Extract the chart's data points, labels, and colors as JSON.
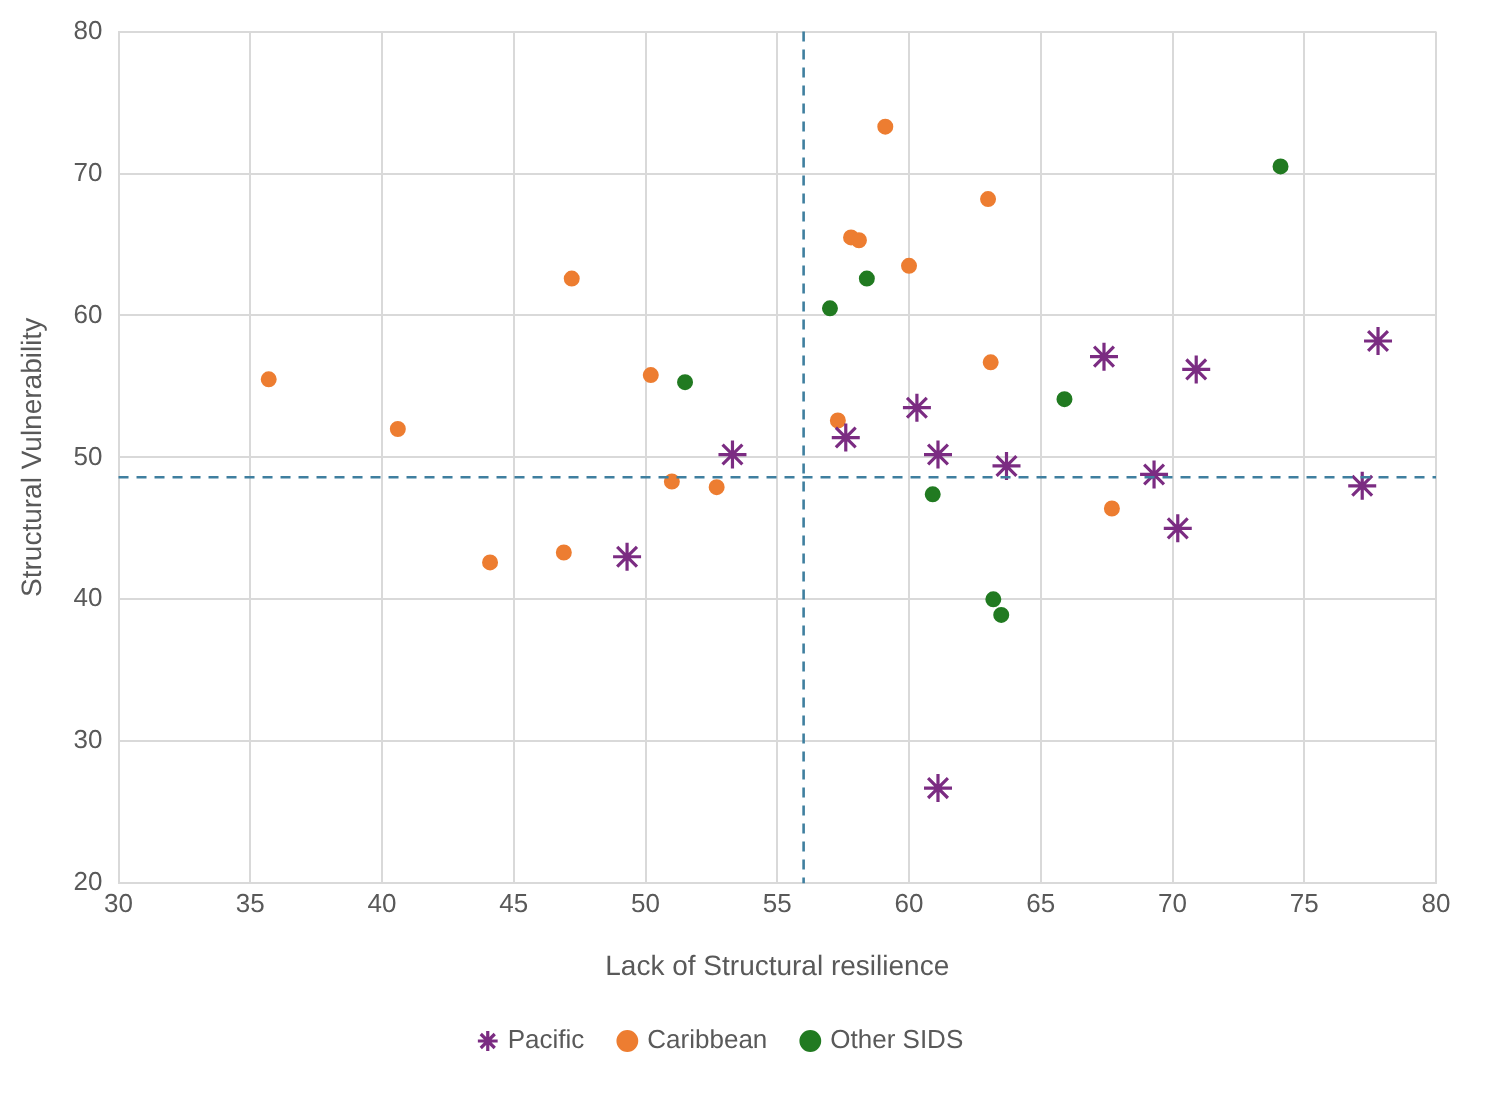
{
  "chart_data": {
    "type": "scatter",
    "xlabel": "Lack of Structural resilience",
    "ylabel": "Structural Vulnerability",
    "xlim": [
      30,
      80
    ],
    "xticks": [
      30,
      35,
      40,
      45,
      50,
      55,
      60,
      65,
      70,
      75,
      80
    ],
    "ylim": [
      20,
      80
    ],
    "yticks": [
      20,
      30,
      40,
      50,
      60,
      70,
      80
    ],
    "grid": true,
    "legend": "bottom",
    "series": [
      {
        "name": "Pacific",
        "color": "#7b2c82",
        "marker": "cross",
        "x": [
          49.3,
          53.3,
          57.6,
          60.3,
          61.1,
          63.7,
          67.4,
          69.3,
          70.2,
          70.9,
          77.2,
          77.8,
          61.1
        ],
        "values": [
          43.0,
          50.2,
          51.4,
          53.5,
          50.2,
          49.4,
          57.1,
          48.8,
          45.0,
          56.2,
          48.0,
          58.2,
          26.7
        ]
      },
      {
        "name": "Caribbean",
        "color": "#ed7d31",
        "marker": "circle",
        "x": [
          35.7,
          40.6,
          44.1,
          46.9,
          47.2,
          50.2,
          51.0,
          52.7,
          59.1,
          57.8,
          58.1,
          57.3,
          60.0,
          63.0,
          63.1,
          67.7
        ],
        "values": [
          55.5,
          52.0,
          42.6,
          43.3,
          62.6,
          55.8,
          48.3,
          47.9,
          73.3,
          65.5,
          65.3,
          52.6,
          63.5,
          68.2,
          56.7,
          46.4
        ]
      },
      {
        "name": "Other SIDS",
        "color": "#217a21",
        "marker": "circle",
        "x": [
          51.5,
          57.0,
          58.4,
          60.9,
          65.9,
          63.2,
          63.5,
          74.1
        ],
        "values": [
          55.3,
          60.5,
          62.6,
          47.4,
          54.1,
          40.0,
          38.9,
          70.5
        ]
      }
    ],
    "ref_lines": [
      {
        "axis": "x",
        "value": 56,
        "color": "#3f7f9f",
        "line_style": "dashed"
      },
      {
        "axis": "y",
        "value": 48.6,
        "color": "#3f7f9f",
        "line_style": "dashed"
      }
    ]
  }
}
